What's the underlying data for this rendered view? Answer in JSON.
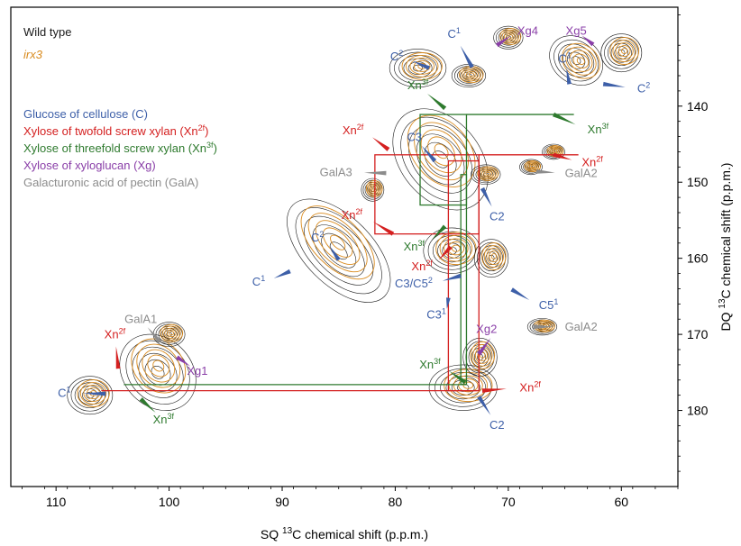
{
  "chart_data": {
    "type": "2D-NMR-contour",
    "title": "",
    "xlabel": {
      "pre": "SQ ",
      "sup": "13",
      "post": "C chemical shift (p.p.m.)"
    },
    "ylabel": {
      "pre": "DQ ",
      "sup": "13",
      "post": "C chemical shift (p.p.m.)"
    },
    "xlim": [
      114,
      55
    ],
    "ylim": [
      127,
      190
    ],
    "xticks": [
      110,
      100,
      90,
      80,
      70,
      60
    ],
    "yticks": [
      140,
      150,
      160,
      170,
      180
    ],
    "colors": {
      "wild_type": "#1a1a1a",
      "irx3": "#d98b1f",
      "cellulose": "#3d5fa8",
      "twofold": "#d42020",
      "threefold": "#2e7a2e",
      "xyloglucan": "#8a3fa8",
      "pectin": "#8c8c8c"
    },
    "sample_legend": [
      {
        "text": "Wild type",
        "color": "#1a1a1a",
        "italic": false
      },
      {
        "text": "irx3",
        "color": "#d98b1f",
        "italic": true
      }
    ],
    "assignment_legend": [
      {
        "text": "Glucose of cellulose (C)",
        "sup": "",
        "tail": "",
        "color": "#3d5fa8"
      },
      {
        "text": "Xylose of twofold screw xylan (Xn",
        "sup": "2f",
        "tail": ")",
        "color": "#d42020"
      },
      {
        "text": "Xylose of threefold screw xylan (Xn",
        "sup": "3f",
        "tail": ")",
        "color": "#2e7a2e"
      },
      {
        "text": "Xylose of xyloglucan (Xg)",
        "sup": "",
        "tail": "",
        "color": "#8a3fa8"
      },
      {
        "text": "Galacturonic acid of pectin (GalA)",
        "sup": "",
        "tail": "",
        "color": "#8c8c8c"
      }
    ],
    "peaks": [
      {
        "x": 101,
        "y": 175,
        "rx": 3.0,
        "ry": 5.5,
        "angle": -45
      },
      {
        "x": 107,
        "y": 178,
        "rx": 2.0,
        "ry": 2.5,
        "angle": 0
      },
      {
        "x": 100,
        "y": 170,
        "rx": 1.4,
        "ry": 1.6,
        "angle": 0
      },
      {
        "x": 74,
        "y": 177,
        "rx": 3.0,
        "ry": 3.0,
        "angle": 0
      },
      {
        "x": 72.5,
        "y": 173,
        "rx": 1.5,
        "ry": 2.5,
        "angle": 0
      },
      {
        "x": 67,
        "y": 169,
        "rx": 1.3,
        "ry": 1.1,
        "angle": 0
      },
      {
        "x": 85,
        "y": 159,
        "rx": 3.0,
        "ry": 8.5,
        "angle": -45
      },
      {
        "x": 75,
        "y": 159,
        "rx": 2.5,
        "ry": 3.0,
        "angle": 0
      },
      {
        "x": 71.5,
        "y": 160,
        "rx": 1.5,
        "ry": 2.5,
        "angle": 0
      },
      {
        "x": 76,
        "y": 147,
        "rx": 3.5,
        "ry": 7.5,
        "angle": -40
      },
      {
        "x": 72,
        "y": 149,
        "rx": 1.3,
        "ry": 1.3,
        "angle": 0
      },
      {
        "x": 68,
        "y": 148,
        "rx": 1.0,
        "ry": 1.0,
        "angle": 0
      },
      {
        "x": 78,
        "y": 135,
        "rx": 2.5,
        "ry": 2.5,
        "angle": 0
      },
      {
        "x": 73.5,
        "y": 136,
        "rx": 1.5,
        "ry": 1.5,
        "angle": 0
      },
      {
        "x": 70,
        "y": 131,
        "rx": 1.3,
        "ry": 1.5,
        "angle": 0
      },
      {
        "x": 64,
        "y": 134,
        "rx": 2.5,
        "ry": 3.0,
        "angle": 35
      },
      {
        "x": 60,
        "y": 133,
        "rx": 1.8,
        "ry": 2.5,
        "angle": 0
      },
      {
        "x": 82,
        "y": 151,
        "rx": 1.0,
        "ry": 1.5,
        "angle": 0
      },
      {
        "x": 66,
        "y": 146,
        "rx": 1.0,
        "ry": 1.0,
        "angle": 0
      }
    ],
    "boxes": [
      {
        "group": "twofold",
        "x1": 81.8,
        "x2": 72.6,
        "y1": 146.4,
        "y2": 156.8
      },
      {
        "group": "twofold",
        "x1": 72.6,
        "x2": 63.8,
        "y1": 146.4,
        "y2": 146.4
      },
      {
        "group": "twofold",
        "x1": 75.3,
        "x2": 72.6,
        "y1": 147.2,
        "y2": 177.4
      },
      {
        "group": "twofold",
        "x1": 106.0,
        "x2": 72.6,
        "y1": 177.4,
        "y2": 177.4
      },
      {
        "group": "threefold",
        "x1": 77.8,
        "x2": 73.7,
        "y1": 141.1,
        "y2": 153.0
      },
      {
        "group": "threefold",
        "x1": 73.7,
        "x2": 64.2,
        "y1": 141.1,
        "y2": 141.1
      },
      {
        "group": "threefold",
        "x1": 74.2,
        "x2": 73.7,
        "y1": 149.0,
        "y2": 176.6
      },
      {
        "group": "threefold",
        "x1": 104.0,
        "x2": 73.7,
        "y1": 176.6,
        "y2": 176.6
      }
    ],
    "annotations": [
      {
        "text": "C",
        "sup": "1",
        "group": "cellulose",
        "lx": 108.7,
        "ly": 178.2,
        "ax": 105.6,
        "ay": 177.8,
        "anchor": "end"
      },
      {
        "text": "Xn",
        "sup": "2f",
        "group": "twofold",
        "lx": 104.8,
        "ly": 170.5,
        "ax": 104.5,
        "ay": 174.5,
        "anchor": "middle"
      },
      {
        "text": "Xn",
        "sup": "3f",
        "group": "threefold",
        "lx": 100.5,
        "ly": 181.7,
        "ax": 102.5,
        "ay": 178.5,
        "anchor": "middle"
      },
      {
        "text": "GalA1",
        "sup": "",
        "group": "pectin",
        "lx": 102.5,
        "ly": 168.5,
        "ax": 100.8,
        "ay": 171.0,
        "anchor": "middle"
      },
      {
        "text": "Xg1",
        "sup": "",
        "group": "xyloglucan",
        "lx": 97.5,
        "ly": 175.3,
        "ax": 99.3,
        "ay": 173.0,
        "anchor": "middle"
      },
      {
        "text": "C",
        "sup": "1",
        "group": "cellulose",
        "lx": 91.5,
        "ly": 163.6,
        "ax": 89.3,
        "ay": 161.7,
        "anchor": "end"
      },
      {
        "text": "C",
        "sup": "2",
        "group": "cellulose",
        "lx": 86.3,
        "ly": 157.8,
        "ax": 85.0,
        "ay": 160.2,
        "anchor": "end"
      },
      {
        "text": "Xn",
        "sup": "2f",
        "group": "twofold",
        "lx": 82.9,
        "ly": 154.8,
        "ax": 80.2,
        "ay": 156.8,
        "anchor": "end"
      },
      {
        "text": "GalA3",
        "sup": "",
        "group": "pectin",
        "lx": 83.8,
        "ly": 149.2,
        "ax": 80.8,
        "ay": 148.8,
        "anchor": "end"
      },
      {
        "text": "Xn",
        "sup": "2f",
        "group": "twofold",
        "lx": 82.8,
        "ly": 143.7,
        "ax": 80.6,
        "ay": 145.7,
        "anchor": "end"
      },
      {
        "text": "C",
        "sup": "2",
        "group": "cellulose",
        "lx": 79.3,
        "ly": 134.0,
        "ax": 77.0,
        "ay": 135.0,
        "anchor": "end"
      },
      {
        "text": "Xn",
        "sup": "3f",
        "group": "threefold",
        "lx": 78.0,
        "ly": 137.8,
        "ax": 75.6,
        "ay": 140.3,
        "anchor": "middle"
      },
      {
        "text": "C",
        "sup": "1",
        "group": "cellulose",
        "lx": 74.8,
        "ly": 131.0,
        "ax": 73.2,
        "ay": 134.9,
        "anchor": "middle"
      },
      {
        "text": "Xg4",
        "sup": "",
        "group": "xyloglucan",
        "lx": 69.2,
        "ly": 130.6,
        "ax": 71.0,
        "ay": 132.0,
        "anchor": "start"
      },
      {
        "text": "Xg5",
        "sup": "",
        "group": "xyloglucan",
        "lx": 64.0,
        "ly": 130.6,
        "ax": 62.5,
        "ay": 131.9,
        "anchor": "middle"
      },
      {
        "text": "C",
        "sup": "1",
        "group": "cellulose",
        "lx": 65.0,
        "ly": 134.3,
        "ax": 64.6,
        "ay": 137.1,
        "anchor": "middle"
      },
      {
        "text": "C",
        "sup": "2",
        "group": "cellulose",
        "lx": 58.6,
        "ly": 138.2,
        "ax": 61.6,
        "ay": 137.1,
        "anchor": "start"
      },
      {
        "text": "Xn",
        "sup": "3f",
        "group": "threefold",
        "lx": 63.0,
        "ly": 143.6,
        "ax": 66.0,
        "ay": 141.1,
        "anchor": "start"
      },
      {
        "text": "Xn",
        "sup": "2f",
        "group": "twofold",
        "lx": 63.5,
        "ly": 147.9,
        "ax": 66.0,
        "ay": 146.4,
        "anchor": "start"
      },
      {
        "text": "C3",
        "sup": "",
        "group": "cellulose",
        "lx": 78.3,
        "ly": 144.6,
        "ax": 76.5,
        "ay": 147.2,
        "anchor": "middle"
      },
      {
        "text": "GalA2",
        "sup": "",
        "group": "pectin",
        "lx": 65.0,
        "ly": 149.3,
        "ax": 67.5,
        "ay": 148.6,
        "anchor": "start"
      },
      {
        "text": "C2",
        "sup": "",
        "group": "cellulose",
        "lx": 71.0,
        "ly": 155.0,
        "ax": 72.3,
        "ay": 150.8,
        "anchor": "middle"
      },
      {
        "text": "Xn",
        "sup": "3f",
        "group": "threefold",
        "lx": 77.4,
        "ly": 159.0,
        "ax": 75.6,
        "ay": 155.8,
        "anchor": "end"
      },
      {
        "text": "Xn",
        "sup": "2f",
        "group": "twofold",
        "lx": 76.7,
        "ly": 161.6,
        "ax": 75.1,
        "ay": 158.5,
        "anchor": "end"
      },
      {
        "text": "C3/C5",
        "sup": "2",
        "group": "cellulose",
        "lx": 76.7,
        "ly": 163.8,
        "ax": 74.2,
        "ay": 162.3,
        "anchor": "end"
      },
      {
        "text": "C3",
        "sup": "1",
        "group": "cellulose",
        "lx": 75.5,
        "ly": 167.9,
        "ax": 75.3,
        "ay": 165.2,
        "anchor": "end"
      },
      {
        "text": "C5",
        "sup": "1",
        "group": "cellulose",
        "lx": 67.3,
        "ly": 166.7,
        "ax": 69.7,
        "ay": 164.1,
        "anchor": "start"
      },
      {
        "text": "Xg2",
        "sup": "",
        "group": "xyloglucan",
        "lx": 71.0,
        "ly": 169.8,
        "ax": 72.6,
        "ay": 172.6,
        "anchor": "end"
      },
      {
        "text": "GalA2",
        "sup": "",
        "group": "pectin",
        "lx": 65.0,
        "ly": 169.5,
        "ax": 67.8,
        "ay": 169.0,
        "anchor": "start"
      },
      {
        "text": "Xn",
        "sup": "3f",
        "group": "threefold",
        "lx": 76.0,
        "ly": 174.5,
        "ax": 73.8,
        "ay": 176.3,
        "anchor": "end"
      },
      {
        "text": "Xn",
        "sup": "2f",
        "group": "twofold",
        "lx": 69.0,
        "ly": 177.5,
        "ax": 72.3,
        "ay": 177.4,
        "anchor": "start"
      },
      {
        "text": "C2",
        "sup": "",
        "group": "cellulose",
        "lx": 71.0,
        "ly": 182.4,
        "ax": 72.6,
        "ay": 178.2,
        "anchor": "middle"
      }
    ]
  }
}
